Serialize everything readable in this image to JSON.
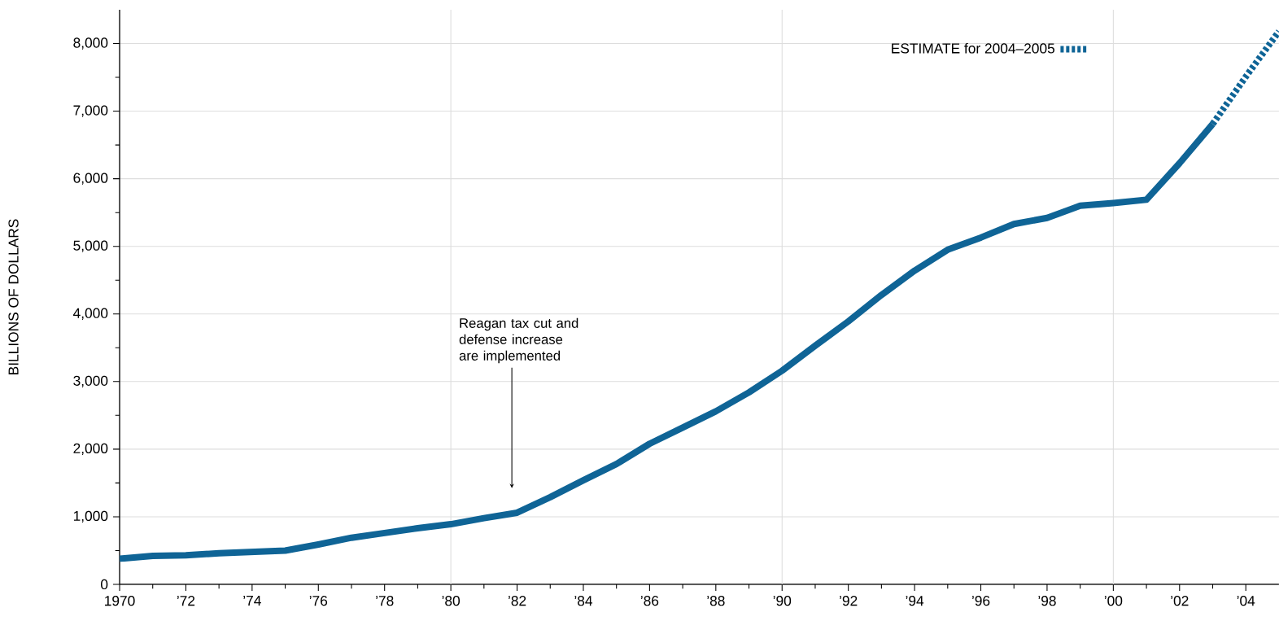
{
  "chart_data": {
    "type": "line",
    "ylabel": "BILLIONS OF DOLLARS",
    "series": [
      {
        "color": "#0f6496",
        "line_style": "solid",
        "x": [
          1970,
          1971,
          1972,
          1973,
          1974,
          1975,
          1976,
          1977,
          1978,
          1979,
          1980,
          1981,
          1982,
          1983,
          1984,
          1985,
          1986,
          1987,
          1988,
          1989,
          1990,
          1991,
          1992,
          1993,
          1994,
          1995,
          1996,
          1997,
          1998,
          1999,
          2000,
          2001,
          2002,
          2003
        ],
        "values": [
          380,
          420,
          430,
          460,
          480,
          500,
          590,
          690,
          760,
          830,
          890,
          980,
          1060,
          1290,
          1540,
          1780,
          2080,
          2320,
          2560,
          2840,
          3160,
          3530,
          3890,
          4280,
          4640,
          4950,
          5130,
          5330,
          5420,
          5600,
          5640,
          5690,
          6230,
          6810
        ]
      },
      {
        "name": "ESTIMATE for 2004–2005",
        "color": "#0f6496",
        "line_style": "dotted",
        "x": [
          2003,
          2004,
          2005
        ],
        "values": [
          6810,
          7510,
          8180
        ]
      }
    ],
    "xlim": [
      1970,
      2005
    ],
    "ylim": [
      0,
      8500
    ],
    "xticks": [
      1970,
      {
        "value": 1972,
        "label": "’72"
      },
      {
        "value": 1974,
        "label": "’74"
      },
      {
        "value": 1976,
        "label": "’76"
      },
      {
        "value": 1978,
        "label": "’78"
      },
      {
        "value": 1980,
        "label": "’80"
      },
      {
        "value": 1982,
        "label": "’82"
      },
      {
        "value": 1984,
        "label": "’84"
      },
      {
        "value": 1986,
        "label": "’86"
      },
      {
        "value": 1988,
        "label": "’88"
      },
      {
        "value": 1990,
        "label": "’90"
      },
      {
        "value": 1992,
        "label": "’92"
      },
      {
        "value": 1994,
        "label": "’94"
      },
      {
        "value": 1996,
        "label": "’96"
      },
      {
        "value": 1998,
        "label": "’98"
      },
      {
        "value": 2000,
        "label": "’00"
      },
      {
        "value": 2002,
        "label": "’02"
      },
      {
        "value": 2004,
        "label": "’04"
      }
    ],
    "yticks": [
      0,
      {
        "value": 1000,
        "label": "1,000"
      },
      {
        "value": 2000,
        "label": "2,000"
      },
      {
        "value": 3000,
        "label": "3,000"
      },
      {
        "value": 4000,
        "label": "4,000"
      },
      {
        "value": 5000,
        "label": "5,000"
      },
      {
        "value": 6000,
        "label": "6,000"
      },
      {
        "value": 7000,
        "label": "7,000"
      },
      {
        "value": 8000,
        "label": "8,000"
      }
    ],
    "grid": "y",
    "ref_lines": [
      {
        "axis": "x",
        "value": 1980,
        "color": "#dddddd"
      },
      {
        "axis": "x",
        "value": 1990,
        "color": "#dddddd"
      },
      {
        "axis": "x",
        "value": 2000,
        "color": "#dddddd"
      }
    ],
    "legend": "top right",
    "annotations": [
      "Reagan tax cut and defense increase are implemented"
    ]
  }
}
